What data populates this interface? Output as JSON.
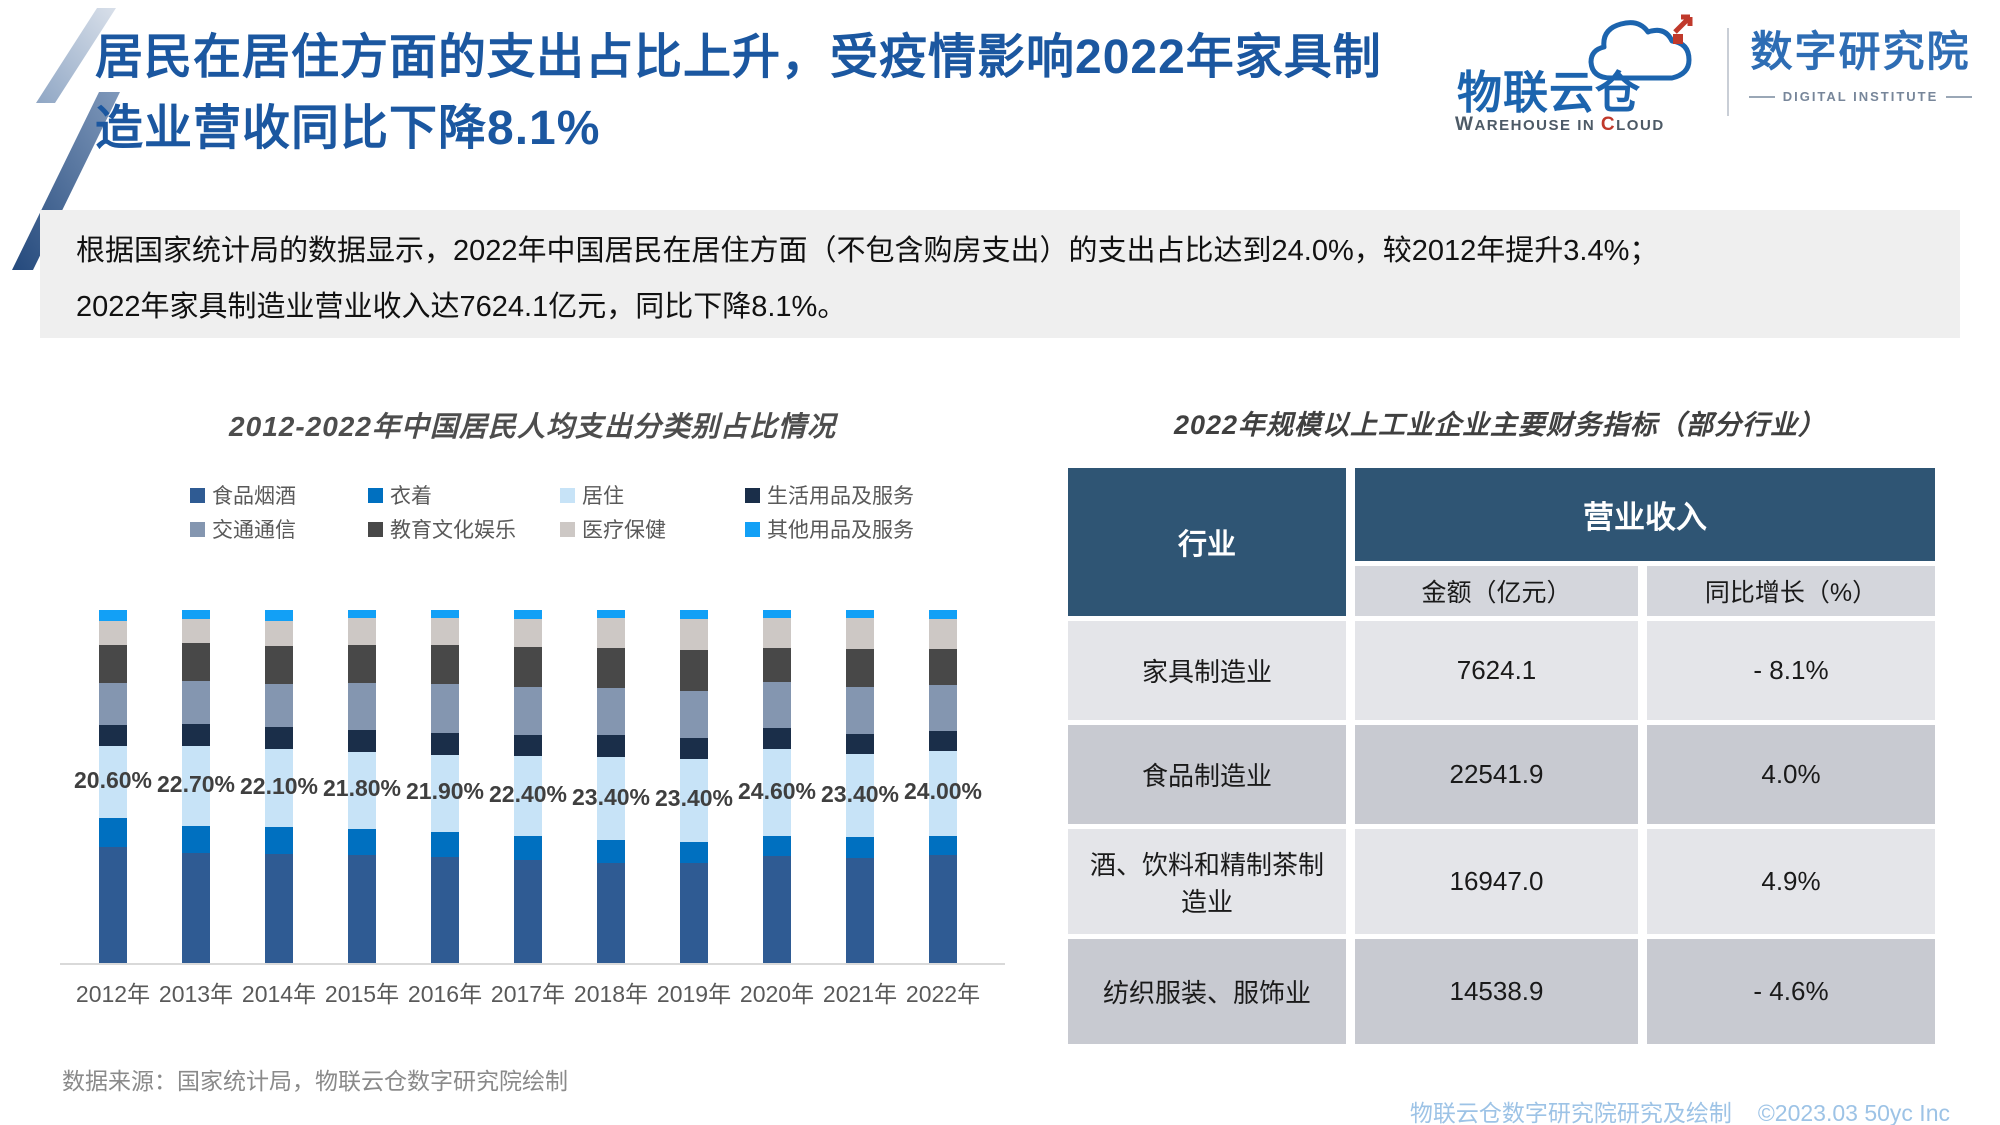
{
  "header": {
    "title_line1": "居民在居住方面的支出占比上升，受疫情影响2022年家具制",
    "title_line2": "造业营收同比下降8.1%",
    "logo_primary_name": "物联云仓",
    "logo_primary_sub": "WAREHOUSE IN CLOUD",
    "logo_secondary_name": "数字研究院",
    "logo_secondary_sub": "DIGITAL INSTITUTE"
  },
  "summary": {
    "line1": "根据国家统计局的数据显示，2022年中国居民在居住方面（不包含购房支出）的支出占比达到24.0%，较2012年提升3.4%；",
    "line2": "2022年家具制造业营业收入达7624.1亿元，同比下降8.1%。"
  },
  "chart_data": [
    {
      "type": "bar",
      "stacked": true,
      "title": "2012-2022年中国居民人均支出分类别占比情况",
      "categories": [
        "2012年",
        "2013年",
        "2014年",
        "2015年",
        "2016年",
        "2017年",
        "2018年",
        "2019年",
        "2020年",
        "2021年",
        "2022年"
      ],
      "series": [
        {
          "name": "食品烟酒",
          "color": "#2F5B93",
          "values": [
            33.0,
            31.2,
            31.0,
            30.6,
            30.1,
            29.3,
            28.4,
            28.2,
            30.2,
            29.8,
            30.5
          ]
        },
        {
          "name": "衣着",
          "color": "#0070C0",
          "values": [
            8.0,
            7.7,
            7.6,
            7.4,
            7.0,
            6.8,
            6.5,
            6.2,
            5.8,
            5.9,
            5.6
          ]
        },
        {
          "name": "居住",
          "color": "#C7E3F7",
          "values": [
            20.6,
            22.7,
            22.1,
            21.8,
            21.9,
            22.4,
            23.4,
            23.4,
            24.6,
            23.4,
            24.0
          ]
        },
        {
          "name": "生活用品及服务",
          "color": "#1A2E49",
          "values": [
            5.9,
            6.1,
            6.1,
            6.1,
            6.2,
            6.1,
            6.2,
            5.9,
            5.9,
            5.9,
            5.7
          ]
        },
        {
          "name": "交通通信",
          "color": "#8496B0",
          "values": [
            11.8,
            12.3,
            12.3,
            13.3,
            13.7,
            13.6,
            13.5,
            13.3,
            13.0,
            13.1,
            13.0
          ]
        },
        {
          "name": "教育文化娱乐",
          "color": "#484848",
          "values": [
            10.9,
            10.6,
            10.6,
            11.0,
            11.2,
            11.4,
            11.2,
            11.7,
            9.6,
            10.8,
            10.1
          ]
        },
        {
          "name": "医疗保健",
          "color": "#CDC8C5",
          "values": [
            6.6,
            6.9,
            7.2,
            7.4,
            7.6,
            7.9,
            8.5,
            8.8,
            8.7,
            8.8,
            8.6
          ]
        },
        {
          "name": "其他用品及服务",
          "color": "#12A0F6",
          "values": [
            3.2,
            2.5,
            3.1,
            2.4,
            2.3,
            2.5,
            2.3,
            2.5,
            2.2,
            2.3,
            2.5
          ]
        }
      ],
      "labeled_series": "居住",
      "value_labels": [
        "20.60%",
        "22.70%",
        "22.10%",
        "21.80%",
        "21.90%",
        "22.40%",
        "23.40%",
        "23.40%",
        "24.60%",
        "23.40%",
        "24.00%"
      ],
      "ylim": [
        0,
        100
      ],
      "unit": "%",
      "grid": false,
      "legend_position": "top"
    },
    {
      "type": "table",
      "title": "2022年规模以上工业企业主要财务指标（部分行业）",
      "header": {
        "industry": "行业",
        "group": "营业收入",
        "amount": "金额（亿元）",
        "growth": "同比增长（%）"
      },
      "rows": [
        {
          "industry": "家具制造业",
          "amount": "7624.1",
          "growth": "- 8.1%"
        },
        {
          "industry": "食品制造业",
          "amount": "22541.9",
          "growth": "4.0%"
        },
        {
          "industry": "酒、饮料和精制茶制造业",
          "amount": "16947.0",
          "growth": "4.9%"
        },
        {
          "industry": "纺织服装、服饰业",
          "amount": "14538.9",
          "growth": "- 4.6%"
        }
      ]
    }
  ],
  "footer": {
    "source": "数据来源：国家统计局，物联云仓数字研究院绘制",
    "credit_left": "物联云仓数字研究院研究及绘制",
    "credit_right": "©2023.03 50yc Inc"
  },
  "colors": {
    "title_blue": "#1B57A0",
    "table_header_blue": "#2F5574",
    "table_subheader_gray": "#D4D6DC",
    "table_row_light": "#E4E5E9",
    "table_row_dark": "#C8CAD1",
    "summary_bg": "#EFEFEF",
    "source_gray": "#8A8A8A",
    "credit_blue": "#9DC3E6",
    "axis_line": "#D9D9D9",
    "logo_blue": "#1C64AE",
    "logo_red": "#C0392B"
  }
}
